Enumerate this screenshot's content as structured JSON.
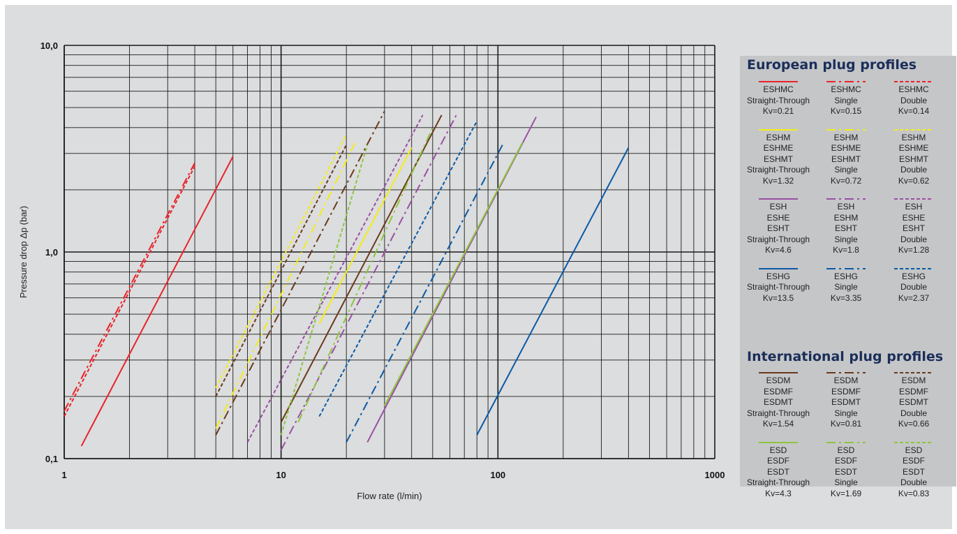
{
  "colors": {
    "background": "#dcddde",
    "legend_background": "#c5c6c8",
    "heading": "#1b2e5a",
    "ESHMC": "#e8232a",
    "ESHM": "#f4ec1a",
    "ESH": "#9a4fa3",
    "ESHG": "#0a5aa5",
    "ESDM": "#6b3a1b",
    "ESD": "#8cc63f"
  },
  "chart_data": {
    "type": "line",
    "xlabel": "Flow rate (l/min)",
    "ylabel": "Pressure drop Δp (bar)",
    "xscale": "log",
    "yscale": "log",
    "xlim": [
      1,
      1000
    ],
    "ylim": [
      0.1,
      10
    ],
    "xticks": [
      "1",
      "10",
      "100",
      "1000"
    ],
    "yticks": [
      "0,1",
      "1,0",
      "10,0"
    ],
    "grid": true,
    "legend_position": "right",
    "series": [
      {
        "name": "ESHMC Straight-Through Kv=0.21",
        "group": "ESHMC",
        "style": "solid",
        "x": [
          1.2,
          6
        ],
        "y": [
          0.115,
          2.9
        ]
      },
      {
        "name": "ESHMC Single Kv=0.15",
        "group": "ESHMC",
        "style": "dashdot",
        "x": [
          1,
          4
        ],
        "y": [
          0.17,
          2.7
        ]
      },
      {
        "name": "ESHMC Double Kv=0.14",
        "group": "ESHMC",
        "style": "dashed",
        "x": [
          1,
          4
        ],
        "y": [
          0.16,
          2.6
        ]
      },
      {
        "name": "ESHM ESHME ESHMT Straight-Through Kv=1.32",
        "group": "ESHM",
        "style": "solid",
        "x": [
          15,
          40
        ],
        "y": [
          0.45,
          3.2
        ]
      },
      {
        "name": "ESHM ESHME ESHMT Single Kv=0.72",
        "group": "ESHM",
        "style": "dashdot",
        "x": [
          5,
          22
        ],
        "y": [
          0.14,
          3.4
        ]
      },
      {
        "name": "ESHM ESHME ESHMT Double Kv=0.62",
        "group": "ESHM",
        "style": "dashed",
        "x": [
          5,
          20
        ],
        "y": [
          0.22,
          3.7
        ]
      },
      {
        "name": "ESH ESHE ESHT Straight-Through Kv=4.6",
        "group": "ESH",
        "style": "solid",
        "x": [
          25,
          150
        ],
        "y": [
          0.12,
          4.5
        ]
      },
      {
        "name": "ESH ESHM ESHT Single Kv=1.8",
        "group": "ESH",
        "style": "dashdot",
        "x": [
          10,
          65
        ],
        "y": [
          0.11,
          4.7
        ]
      },
      {
        "name": "ESH ESHE ESHT Double Kv=1.28",
        "group": "ESH",
        "style": "dashed",
        "x": [
          7,
          45
        ],
        "y": [
          0.12,
          4.6
        ]
      },
      {
        "name": "ESHG Straight-Through Kv=13.5",
        "group": "ESHG",
        "style": "solid",
        "x": [
          80,
          400
        ],
        "y": [
          0.13,
          3.2
        ]
      },
      {
        "name": "ESHG Single Kv=3.35",
        "group": "ESHG",
        "style": "dashdot",
        "x": [
          20,
          105
        ],
        "y": [
          0.12,
          3.3
        ]
      },
      {
        "name": "ESHG Double Kv=2.37",
        "group": "ESHG",
        "style": "dashed",
        "x": [
          15,
          80
        ],
        "y": [
          0.16,
          4.3
        ]
      },
      {
        "name": "ESDM ESDMF ESDMT Straight-Through Kv=1.54",
        "group": "ESDM",
        "style": "solid",
        "x": [
          10,
          55
        ],
        "y": [
          0.15,
          4.6
        ]
      },
      {
        "name": "ESDM ESDMF ESDMT Single Kv=0.81",
        "group": "ESDM",
        "style": "dashdot",
        "x": [
          5,
          30
        ],
        "y": [
          0.13,
          4.8
        ]
      },
      {
        "name": "ESDM ESDMF ESDMT Double Kv=0.66",
        "group": "ESDM",
        "style": "dashed",
        "x": [
          5,
          20
        ],
        "y": [
          0.2,
          3.3
        ]
      },
      {
        "name": "ESD ESDF ESDT Straight-Through Kv=4.3",
        "group": "ESD",
        "style": "solid",
        "x": [
          30,
          130
        ],
        "y": [
          0.18,
          3.4
        ]
      },
      {
        "name": "ESD ESDF ESDT Single Kv=1.69",
        "group": "ESD",
        "style": "dashdot",
        "x": [
          12,
          50
        ],
        "y": [
          0.15,
          4.0
        ]
      },
      {
        "name": "ESD ESDF ESDT Double Kv=0.83",
        "group": "ESD",
        "style": "dashed",
        "x": [
          10,
          25
        ],
        "y": [
          0.13,
          3.3
        ]
      }
    ]
  },
  "legend": {
    "european_heading": "European plug profiles",
    "international_heading": "International plug profiles",
    "european": [
      {
        "group": "ESHMC",
        "items": [
          {
            "style": "solid",
            "lines": [
              "ESHMC",
              "Straight-Through",
              "Kv=0.21"
            ]
          },
          {
            "style": "dashdot",
            "lines": [
              "ESHMC",
              "Single",
              "Kv=0.15"
            ]
          },
          {
            "style": "dashed",
            "lines": [
              "ESHMC",
              "Double",
              "Kv=0.14"
            ]
          }
        ]
      },
      {
        "group": "ESHM",
        "items": [
          {
            "style": "solid",
            "lines": [
              "ESHM",
              "ESHME",
              "ESHMT",
              "Straight-Through",
              "Kv=1.32"
            ]
          },
          {
            "style": "dashdot",
            "lines": [
              "ESHM",
              "ESHME",
              "ESHMT",
              "Single",
              "Kv=0.72"
            ]
          },
          {
            "style": "dashed",
            "lines": [
              "ESHM",
              "ESHME",
              "ESHMT",
              "Double",
              "Kv=0.62"
            ]
          }
        ]
      },
      {
        "group": "ESH",
        "items": [
          {
            "style": "solid",
            "lines": [
              "ESH",
              "ESHE",
              "ESHT",
              "Straight-Through",
              "Kv=4.6"
            ]
          },
          {
            "style": "dashdot",
            "lines": [
              "ESH",
              "ESHM",
              "ESHT",
              "Single",
              "Kv=1.8"
            ]
          },
          {
            "style": "dashed",
            "lines": [
              "ESH",
              "ESHE",
              "ESHT",
              "Double",
              "Kv=1.28"
            ]
          }
        ]
      },
      {
        "group": "ESHG",
        "items": [
          {
            "style": "solid",
            "lines": [
              "ESHG",
              "Straight-Through",
              "Kv=13.5"
            ]
          },
          {
            "style": "dashdot",
            "lines": [
              "ESHG",
              "Single",
              "Kv=3.35"
            ]
          },
          {
            "style": "dashed",
            "lines": [
              "ESHG",
              "Double",
              "Kv=2.37"
            ]
          }
        ]
      }
    ],
    "international": [
      {
        "group": "ESDM",
        "items": [
          {
            "style": "solid",
            "lines": [
              "ESDM",
              "ESDMF",
              "ESDMT",
              "Straight-Through",
              "Kv=1.54"
            ]
          },
          {
            "style": "dashdot",
            "lines": [
              "ESDM",
              "ESDMF",
              "ESDMT",
              "Single",
              "Kv=0.81"
            ]
          },
          {
            "style": "dashed",
            "lines": [
              "ESDM",
              "ESDMF",
              "ESDMT",
              "Double",
              "Kv=0.66"
            ]
          }
        ]
      },
      {
        "group": "ESD",
        "items": [
          {
            "style": "solid",
            "lines": [
              "ESD",
              "ESDF",
              "ESDT",
              "Straight-Through",
              "Kv=4.3"
            ]
          },
          {
            "style": "dashdot",
            "lines": [
              "ESD",
              "ESDF",
              "ESDT",
              "Single",
              "Kv=1.69"
            ]
          },
          {
            "style": "dashed",
            "lines": [
              "ESD",
              "ESDF",
              "ESDT",
              "Double",
              "Kv=0.83"
            ]
          }
        ]
      }
    ]
  }
}
